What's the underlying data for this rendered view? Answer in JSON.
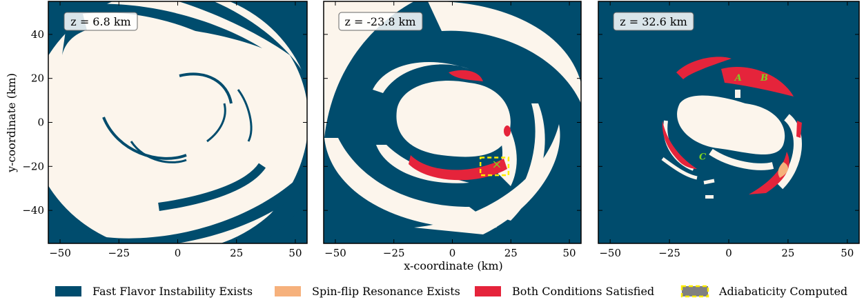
{
  "colors": {
    "fast_flavor": "#004c6d",
    "background": "#fcf5ec",
    "spin_flip": "#f6b17c",
    "both": "#e5243b",
    "adiabaticity_fill": "#808080",
    "adiabaticity_edge": "#ffee00",
    "point_label": "#7ed321"
  },
  "chart_data": {
    "type": "heatmap",
    "shared_xlabel": "x-coordinate (km)",
    "shared_ylabel": "y-coordinate (km)",
    "xlim": [
      -55,
      55
    ],
    "ylim": [
      -55,
      55
    ],
    "xticks": [
      -50,
      -25,
      0,
      25,
      50
    ],
    "yticks": [
      -40,
      -20,
      0,
      20,
      40
    ],
    "xtick_labels": [
      "−50",
      "−25",
      "0",
      "25",
      "50"
    ],
    "ytick_labels": [
      "−40",
      "−20",
      "0",
      "20",
      "40"
    ],
    "legend": [
      {
        "label": "Fast Flavor Instability Exists",
        "color_key": "fast_flavor"
      },
      {
        "label": "Spin-flip Resonance Exists",
        "color_key": "spin_flip"
      },
      {
        "label": "Both Conditions Satisfied",
        "color_key": "both"
      },
      {
        "label": "Adiabaticity Computed",
        "color_key": "adiabaticity_fill"
      }
    ],
    "legend_placement": "bottom",
    "panels": [
      {
        "slice_label": "z = 6.8 km",
        "z": 6.8,
        "unit": "km"
      },
      {
        "slice_label": "z = -23.8 km",
        "z": -23.8,
        "unit": "km",
        "adiabaticity_box": {
          "x": [
            12,
            24
          ],
          "y": [
            -24,
            -16
          ]
        },
        "marker": {
          "symbol": "×",
          "x": 19,
          "y": -19
        }
      },
      {
        "slice_label": "z = 32.6 km",
        "z": 32.6,
        "unit": "km",
        "points": [
          {
            "label": "A",
            "x": 4,
            "y": 19
          },
          {
            "label": "B",
            "x": 15,
            "y": 19
          },
          {
            "label": "C",
            "x": -11,
            "y": -17
          }
        ]
      }
    ]
  }
}
